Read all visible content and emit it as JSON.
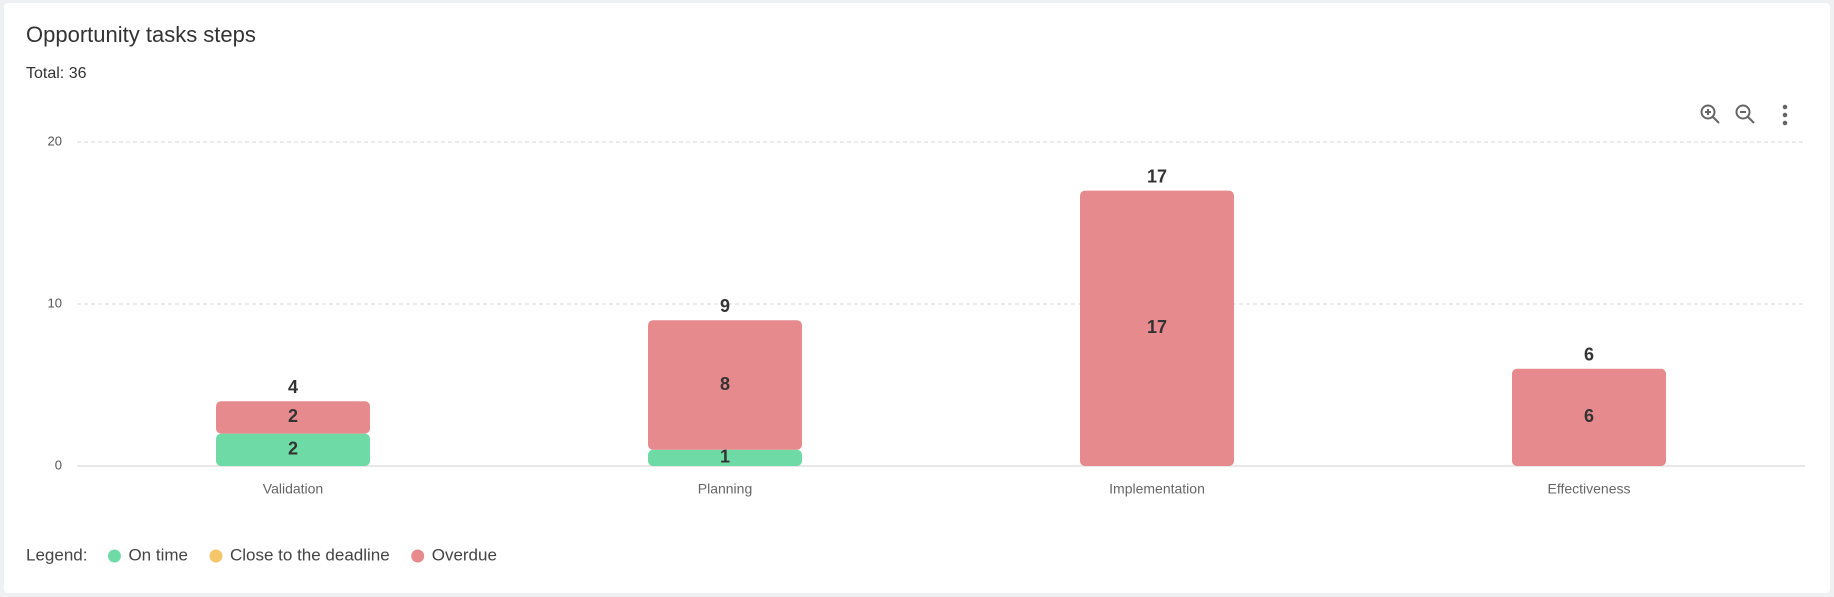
{
  "chart_data": {
    "type": "stacked_bar",
    "title": "Opportunity tasks steps",
    "subtitle": "Total: 36",
    "categories": [
      "Validation",
      "Planning",
      "Implementation",
      "Effectiveness"
    ],
    "series": [
      {
        "name": "On time",
        "color": "#6edba7",
        "values": [
          2,
          1,
          0,
          0
        ]
      },
      {
        "name": "Close to the deadline",
        "color": "#f5c76a",
        "values": [
          0,
          0,
          0,
          0
        ]
      },
      {
        "name": "Overdue",
        "color": "#e68a8d",
        "values": [
          2,
          8,
          17,
          6
        ]
      }
    ],
    "totals": [
      4,
      9,
      17,
      6
    ],
    "ylim": [
      0,
      20
    ],
    "yticks": [
      0,
      10,
      20
    ],
    "grid": true,
    "legend_title": "Legend:",
    "legend_position": "bottom-left"
  }
}
